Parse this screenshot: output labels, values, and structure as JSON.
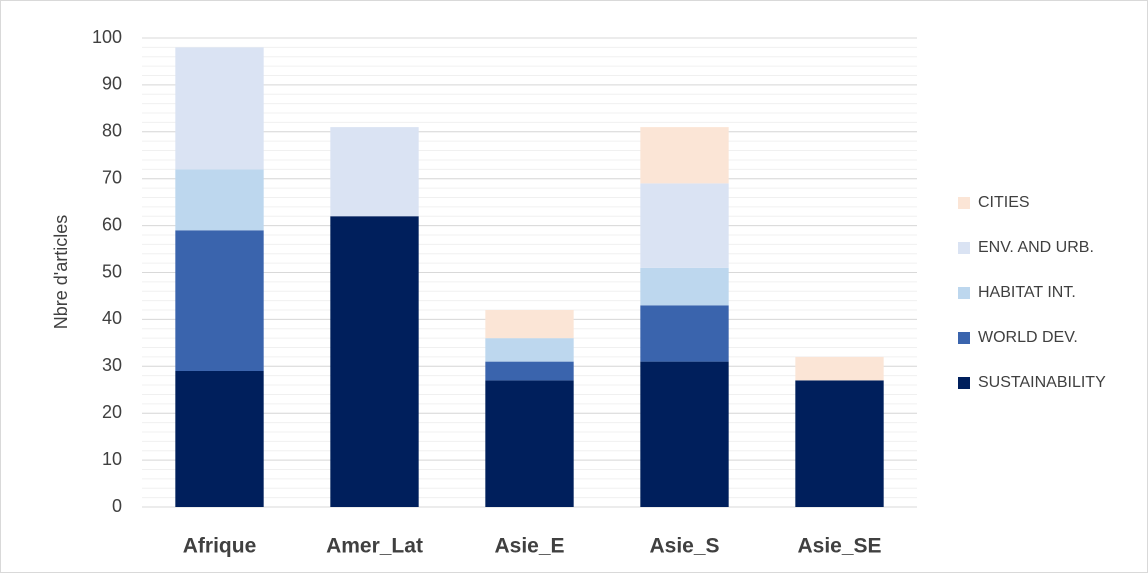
{
  "chart_data": {
    "type": "stacked_bar",
    "y_label": "Nbre d'articles",
    "categories": [
      "Afrique",
      "Amer_Lat",
      "Asie_E",
      "Asie_S",
      "Asie_SE"
    ],
    "series": [
      {
        "name": "SUSTAINABILITY",
        "color": "#001f5c",
        "values": [
          29,
          62,
          27,
          31,
          27
        ]
      },
      {
        "name": "WORLD DEV.",
        "color": "#3a64ad",
        "values": [
          30,
          0,
          4,
          12,
          0
        ]
      },
      {
        "name": "HABITAT INT.",
        "color": "#bdd7ee",
        "values": [
          13,
          0,
          5,
          8,
          0
        ]
      },
      {
        "name": "ENV. AND URB.",
        "color": "#dae3f3",
        "values": [
          26,
          19,
          0,
          18,
          0
        ]
      },
      {
        "name": "CITIES",
        "color": "#fbe5d6",
        "values": [
          0,
          0,
          6,
          12,
          5
        ]
      }
    ],
    "ylim": [
      0,
      100
    ],
    "yticks": [
      0,
      10,
      20,
      30,
      40,
      50,
      60,
      70,
      80,
      90,
      100
    ],
    "grid": true,
    "minor_grid": true,
    "legend": "right"
  }
}
